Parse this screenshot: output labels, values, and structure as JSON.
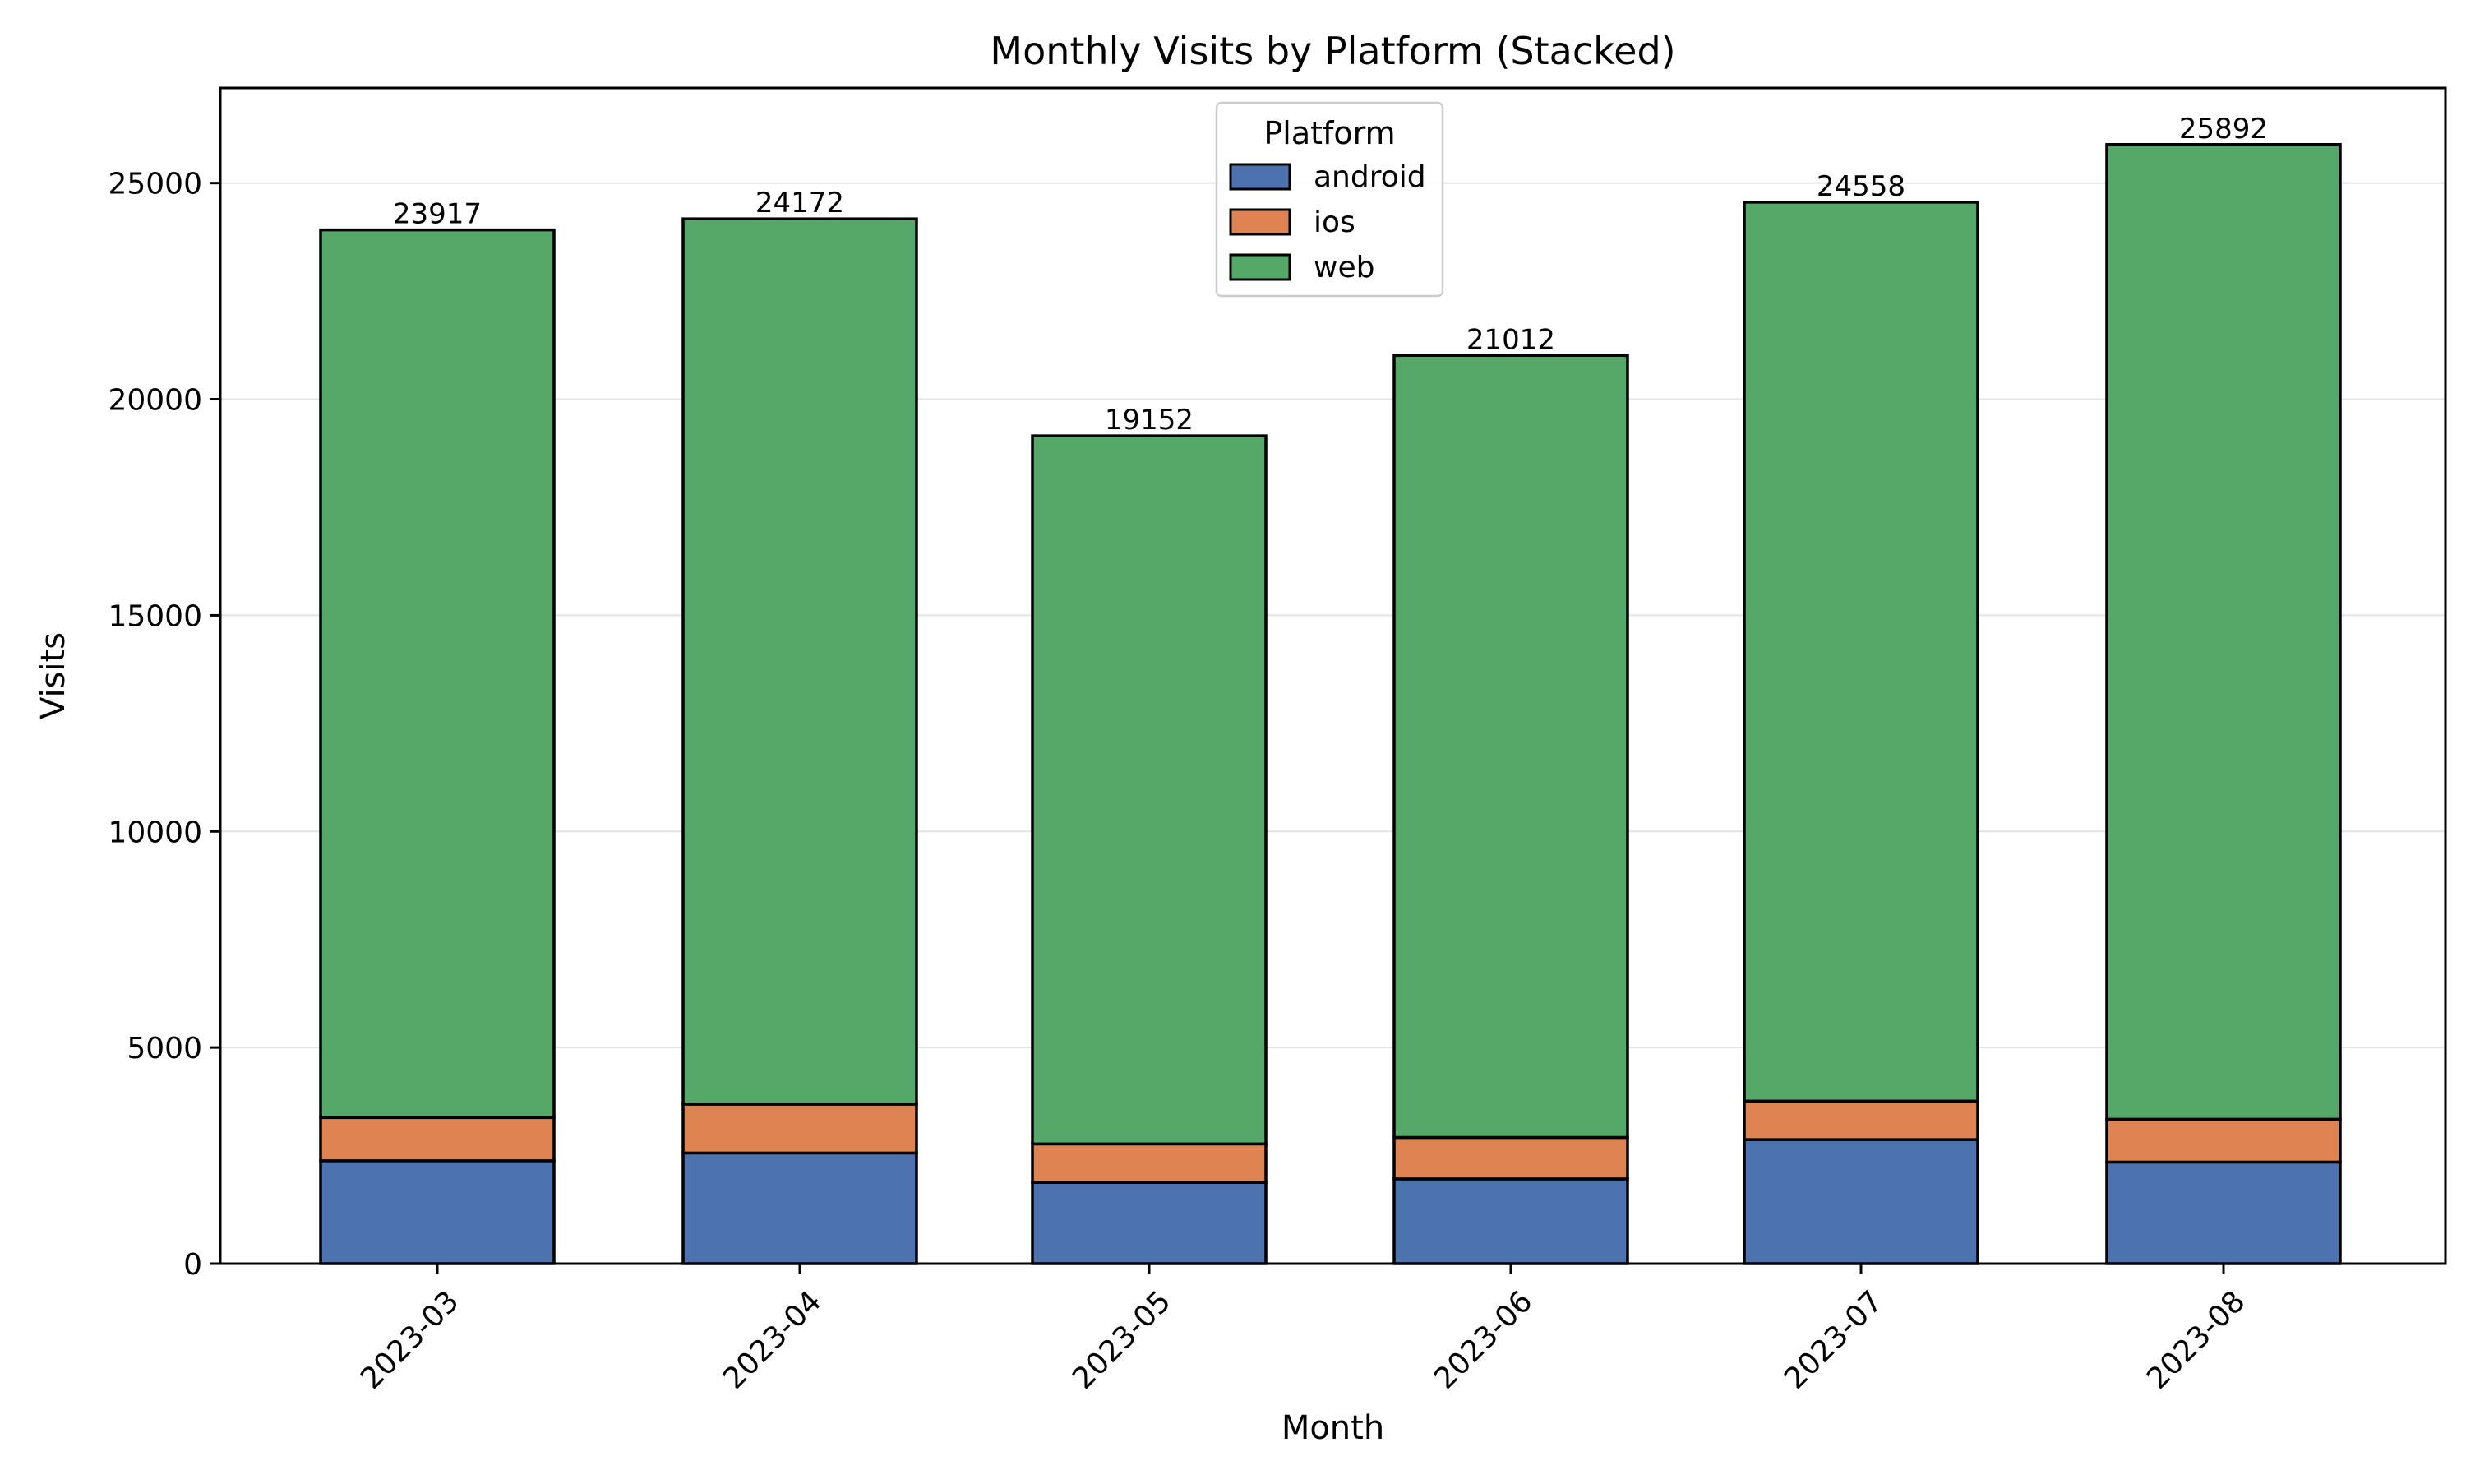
{
  "chart_data": {
    "type": "bar",
    "stacked": true,
    "title": "Monthly Visits by Platform (Stacked)",
    "xlabel": "Month",
    "ylabel": "Visits",
    "categories": [
      "2023-03",
      "2023-04",
      "2023-05",
      "2023-06",
      "2023-07",
      "2023-08"
    ],
    "series": [
      {
        "name": "android",
        "color": "#4c72b0",
        "values": [
          2380,
          2560,
          1880,
          1960,
          2870,
          2350
        ]
      },
      {
        "name": "ios",
        "color": "#dd8452",
        "values": [
          1000,
          1130,
          890,
          960,
          890,
          990
        ]
      },
      {
        "name": "web",
        "color": "#55a868",
        "values": [
          20537,
          20482,
          16382,
          18092,
          20798,
          22552
        ]
      }
    ],
    "totals": [
      23917,
      24172,
      19152,
      21012,
      24558,
      25892
    ],
    "ylim": [
      0,
      27200
    ],
    "yticks": [
      0,
      5000,
      10000,
      15000,
      20000,
      25000
    ],
    "grid": "y",
    "legend": {
      "title": "Platform",
      "position": "top-center"
    }
  }
}
